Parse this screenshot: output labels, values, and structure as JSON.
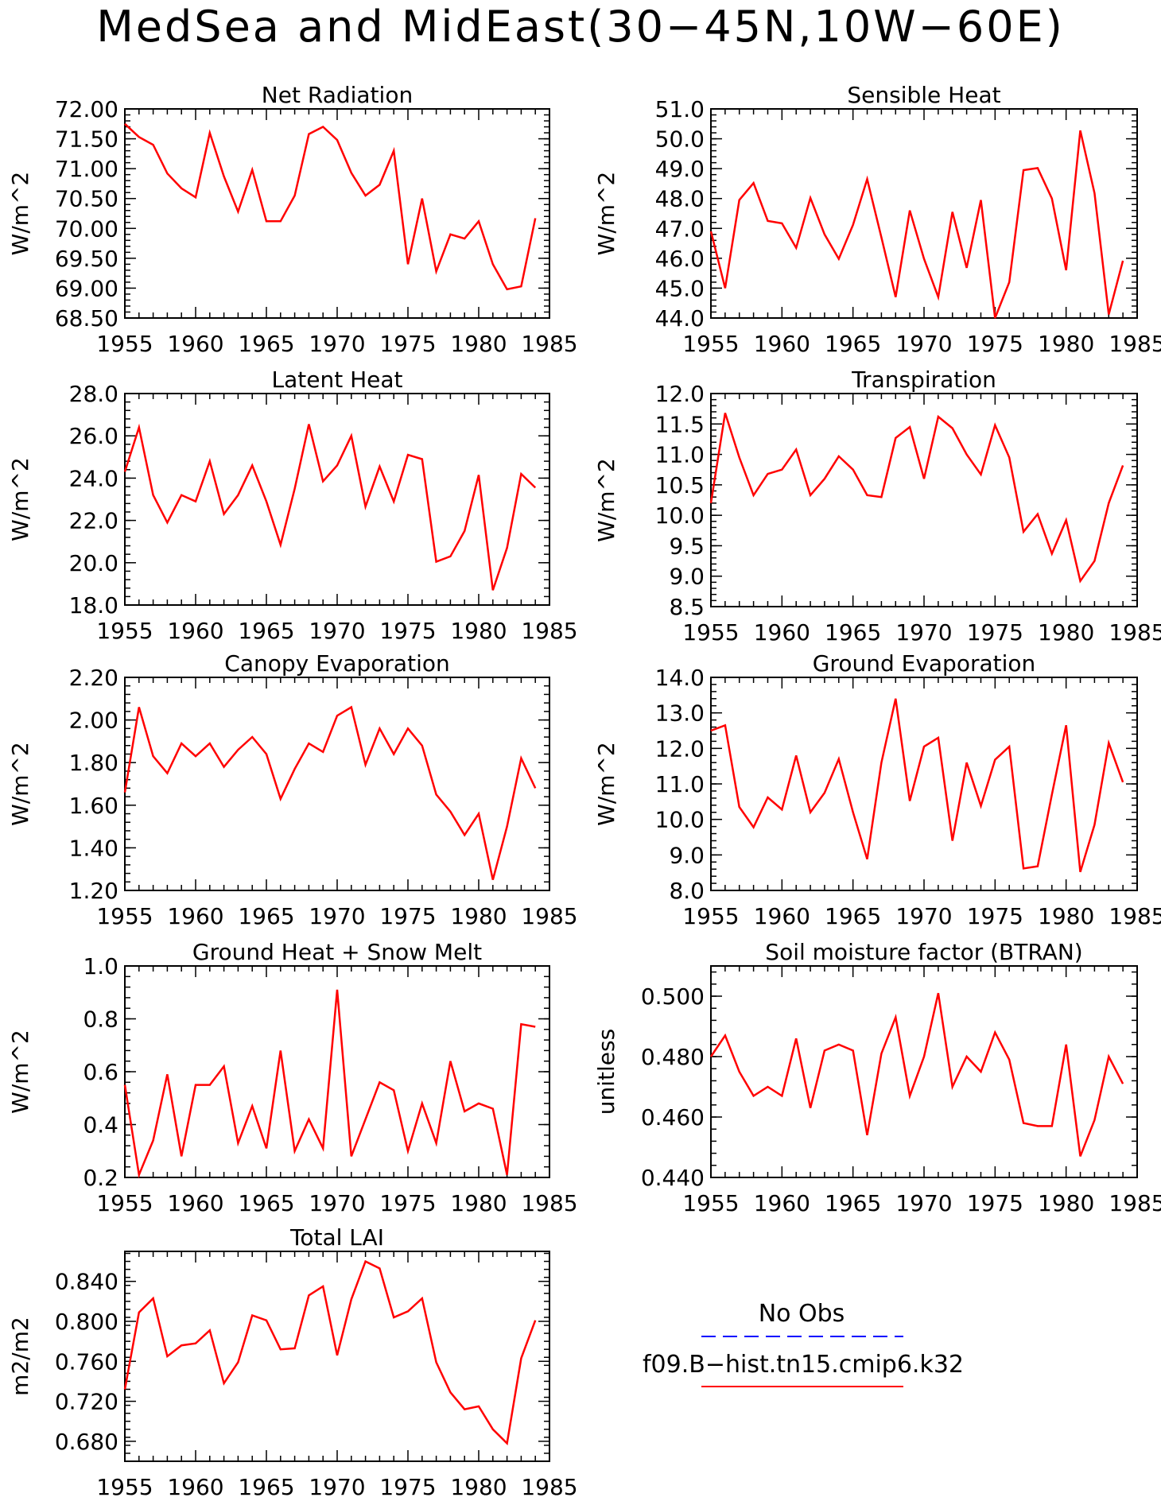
{
  "title": "MedSea and MidEast(30−45N,10W−60E)",
  "colors": {
    "model_line": "#ff0000",
    "obs_line": "#0000ff",
    "axes": "#000000",
    "background": "#ffffff"
  },
  "legend": {
    "obs_label": "No Obs",
    "model_label": "f09.B−hist.tn15.cmip6.k32"
  },
  "chart_data": [
    {
      "type": "line",
      "title": "Net Radiation",
      "ylabel": "W/m^2",
      "xlabel": "",
      "xlim": [
        1955,
        1985
      ],
      "xticks": [
        1955,
        1960,
        1965,
        1970,
        1975,
        1980,
        1985
      ],
      "ylim": [
        68.5,
        72.0
      ],
      "yticks": [
        "68.50",
        "69.00",
        "69.50",
        "70.00",
        "70.50",
        "71.00",
        "71.50",
        "72.00"
      ],
      "x": [
        1955,
        1956,
        1957,
        1958,
        1959,
        1960,
        1961,
        1962,
        1963,
        1964,
        1965,
        1966,
        1967,
        1968,
        1969,
        1970,
        1971,
        1972,
        1973,
        1974,
        1975,
        1976,
        1977,
        1978,
        1979,
        1980,
        1981,
        1982,
        1983,
        1984
      ],
      "series": [
        {
          "values": [
            71.75,
            71.53,
            71.4,
            70.92,
            70.67,
            70.52,
            71.6,
            70.87,
            70.28,
            70.98,
            70.12,
            70.12,
            70.55,
            71.58,
            71.7,
            71.48,
            70.93,
            70.55,
            70.73,
            71.3,
            69.4,
            70.5,
            69.28,
            69.9,
            69.83,
            70.12,
            69.4,
            68.98,
            69.03,
            70.17
          ]
        }
      ]
    },
    {
      "type": "line",
      "title": "Sensible Heat",
      "ylabel": "W/m^2",
      "xlabel": "",
      "xlim": [
        1955,
        1985
      ],
      "xticks": [
        1955,
        1960,
        1965,
        1970,
        1975,
        1980,
        1985
      ],
      "ylim": [
        44.0,
        51.0
      ],
      "yticks": [
        "44.0",
        "45.0",
        "46.0",
        "47.0",
        "48.0",
        "49.0",
        "50.0",
        "51.0"
      ],
      "x": [
        1955,
        1956,
        1957,
        1958,
        1959,
        1960,
        1961,
        1962,
        1963,
        1964,
        1965,
        1966,
        1967,
        1968,
        1969,
        1970,
        1971,
        1972,
        1973,
        1974,
        1975,
        1976,
        1977,
        1978,
        1979,
        1980,
        1981,
        1982,
        1983,
        1984
      ],
      "series": [
        {
          "values": [
            46.9,
            45.0,
            47.95,
            48.52,
            47.25,
            47.17,
            46.35,
            48.02,
            46.8,
            45.98,
            47.12,
            48.65,
            46.7,
            44.7,
            47.6,
            45.98,
            44.7,
            47.55,
            45.68,
            47.95,
            44.0,
            45.2,
            48.95,
            49.02,
            48.0,
            45.6,
            50.28,
            48.18,
            44.12,
            45.92
          ]
        }
      ]
    },
    {
      "type": "line",
      "title": "Latent Heat",
      "ylabel": "W/m^2",
      "xlabel": "",
      "xlim": [
        1955,
        1985
      ],
      "xticks": [
        1955,
        1960,
        1965,
        1970,
        1975,
        1980,
        1985
      ],
      "ylim": [
        18.0,
        28.0
      ],
      "yticks": [
        "18.0",
        "20.0",
        "22.0",
        "24.0",
        "26.0",
        "28.0"
      ],
      "x": [
        1955,
        1956,
        1957,
        1958,
        1959,
        1960,
        1961,
        1962,
        1963,
        1964,
        1965,
        1966,
        1967,
        1968,
        1969,
        1970,
        1971,
        1972,
        1973,
        1974,
        1975,
        1976,
        1977,
        1978,
        1979,
        1980,
        1981,
        1982,
        1983,
        1984
      ],
      "series": [
        {
          "values": [
            24.3,
            26.4,
            23.2,
            21.9,
            23.2,
            22.9,
            24.8,
            22.3,
            23.2,
            24.6,
            22.9,
            20.85,
            23.5,
            26.55,
            23.85,
            24.6,
            26.0,
            22.65,
            24.55,
            22.9,
            25.1,
            24.9,
            20.05,
            20.3,
            21.5,
            24.15,
            18.7,
            20.7,
            24.2,
            23.55
          ]
        }
      ]
    },
    {
      "type": "line",
      "title": "Transpiration",
      "ylabel": "W/m^2",
      "xlabel": "",
      "xlim": [
        1955,
        1985
      ],
      "xticks": [
        1955,
        1960,
        1965,
        1970,
        1975,
        1980,
        1985
      ],
      "ylim": [
        8.5,
        12.0
      ],
      "yticks": [
        "8.5",
        "9.0",
        "9.5",
        "10.0",
        "10.5",
        "11.0",
        "11.5",
        "12.0"
      ],
      "x": [
        1955,
        1956,
        1957,
        1958,
        1959,
        1960,
        1961,
        1962,
        1963,
        1964,
        1965,
        1966,
        1967,
        1968,
        1969,
        1970,
        1971,
        1972,
        1973,
        1974,
        1975,
        1976,
        1977,
        1978,
        1979,
        1980,
        1981,
        1982,
        1983,
        1984
      ],
      "series": [
        {
          "values": [
            10.2,
            11.68,
            10.95,
            10.33,
            10.68,
            10.75,
            11.08,
            10.33,
            10.6,
            10.97,
            10.75,
            10.33,
            10.3,
            11.27,
            11.45,
            10.6,
            11.62,
            11.43,
            11.0,
            10.67,
            11.48,
            10.95,
            9.73,
            10.02,
            9.37,
            9.92,
            8.92,
            9.25,
            10.2,
            10.82
          ]
        }
      ]
    },
    {
      "type": "line",
      "title": "Canopy Evaporation",
      "ylabel": "W/m^2",
      "xlabel": "",
      "xlim": [
        1955,
        1985
      ],
      "xticks": [
        1955,
        1960,
        1965,
        1970,
        1975,
        1980,
        1985
      ],
      "ylim": [
        1.2,
        2.2
      ],
      "yticks": [
        "1.20",
        "1.40",
        "1.60",
        "1.80",
        "2.00",
        "2.20"
      ],
      "x": [
        1955,
        1956,
        1957,
        1958,
        1959,
        1960,
        1961,
        1962,
        1963,
        1964,
        1965,
        1966,
        1967,
        1968,
        1969,
        1970,
        1971,
        1972,
        1973,
        1974,
        1975,
        1976,
        1977,
        1978,
        1979,
        1980,
        1981,
        1982,
        1983,
        1984
      ],
      "series": [
        {
          "values": [
            1.66,
            2.06,
            1.83,
            1.75,
            1.89,
            1.83,
            1.89,
            1.78,
            1.86,
            1.92,
            1.84,
            1.63,
            1.77,
            1.89,
            1.85,
            2.02,
            2.06,
            1.79,
            1.96,
            1.84,
            1.96,
            1.88,
            1.65,
            1.57,
            1.46,
            1.56,
            1.25,
            1.5,
            1.82,
            1.68
          ]
        }
      ]
    },
    {
      "type": "line",
      "title": "Ground Evaporation",
      "ylabel": "W/m^2",
      "xlabel": "",
      "xlim": [
        1955,
        1985
      ],
      "xticks": [
        1955,
        1960,
        1965,
        1970,
        1975,
        1980,
        1985
      ],
      "ylim": [
        8.0,
        14.0
      ],
      "yticks": [
        "8.0",
        "9.0",
        "10.0",
        "11.0",
        "12.0",
        "13.0",
        "14.0"
      ],
      "x": [
        1955,
        1956,
        1957,
        1958,
        1959,
        1960,
        1961,
        1962,
        1963,
        1964,
        1965,
        1966,
        1967,
        1968,
        1969,
        1970,
        1971,
        1972,
        1973,
        1974,
        1975,
        1976,
        1977,
        1978,
        1979,
        1980,
        1981,
        1982,
        1983,
        1984
      ],
      "series": [
        {
          "values": [
            12.5,
            12.65,
            10.35,
            9.78,
            10.62,
            10.28,
            11.8,
            10.2,
            10.75,
            11.7,
            10.2,
            8.88,
            11.6,
            13.4,
            10.52,
            12.05,
            12.3,
            9.4,
            11.6,
            10.38,
            11.68,
            12.05,
            8.62,
            8.68,
            10.7,
            12.65,
            8.52,
            9.85,
            12.15,
            11.05
          ]
        }
      ]
    },
    {
      "type": "line",
      "title": "Ground Heat + Snow Melt",
      "ylabel": "W/m^2",
      "xlabel": "",
      "xlim": [
        1955,
        1985
      ],
      "xticks": [
        1955,
        1960,
        1965,
        1970,
        1975,
        1980,
        1985
      ],
      "ylim": [
        0.2,
        1.0
      ],
      "yticks": [
        "0.2",
        "0.4",
        "0.6",
        "0.8",
        "1.0"
      ],
      "x": [
        1955,
        1956,
        1957,
        1958,
        1959,
        1960,
        1961,
        1962,
        1963,
        1964,
        1965,
        1966,
        1967,
        1968,
        1969,
        1970,
        1971,
        1972,
        1973,
        1974,
        1975,
        1976,
        1977,
        1978,
        1979,
        1980,
        1981,
        1982,
        1983,
        1984
      ],
      "series": [
        {
          "values": [
            0.55,
            0.21,
            0.34,
            0.59,
            0.28,
            0.55,
            0.55,
            0.62,
            0.33,
            0.47,
            0.31,
            0.68,
            0.3,
            0.42,
            0.31,
            0.91,
            0.28,
            0.42,
            0.56,
            0.53,
            0.3,
            0.48,
            0.33,
            0.64,
            0.45,
            0.48,
            0.46,
            0.21,
            0.78,
            0.77
          ]
        }
      ]
    },
    {
      "type": "line",
      "title": "Soil moisture factor (BTRAN)",
      "ylabel": "unitless",
      "xlabel": "",
      "xlim": [
        1955,
        1985
      ],
      "xticks": [
        1955,
        1960,
        1965,
        1970,
        1975,
        1980,
        1985
      ],
      "ylim": [
        0.44,
        0.51
      ],
      "yticks": [
        "0.440",
        "0.460",
        "0.480",
        "0.500"
      ],
      "x": [
        1955,
        1956,
        1957,
        1958,
        1959,
        1960,
        1961,
        1962,
        1963,
        1964,
        1965,
        1966,
        1967,
        1968,
        1969,
        1970,
        1971,
        1972,
        1973,
        1974,
        1975,
        1976,
        1977,
        1978,
        1979,
        1980,
        1981,
        1982,
        1983,
        1984
      ],
      "series": [
        {
          "values": [
            0.48,
            0.487,
            0.475,
            0.467,
            0.47,
            0.467,
            0.486,
            0.463,
            0.482,
            0.484,
            0.482,
            0.454,
            0.481,
            0.493,
            0.467,
            0.48,
            0.501,
            0.47,
            0.48,
            0.475,
            0.488,
            0.479,
            0.458,
            0.457,
            0.457,
            0.484,
            0.447,
            0.459,
            0.48,
            0.471
          ]
        }
      ]
    },
    {
      "type": "line",
      "title": "Total LAI",
      "ylabel": "m2/m2",
      "xlabel": "",
      "xlim": [
        1955,
        1985
      ],
      "xticks": [
        1955,
        1960,
        1965,
        1970,
        1975,
        1980,
        1985
      ],
      "ylim": [
        0.66,
        0.87
      ],
      "yticks": [
        "0.680",
        "0.720",
        "0.760",
        "0.800",
        "0.840"
      ],
      "x": [
        1955,
        1956,
        1957,
        1958,
        1959,
        1960,
        1961,
        1962,
        1963,
        1964,
        1965,
        1966,
        1967,
        1968,
        1969,
        1970,
        1971,
        1972,
        1973,
        1974,
        1975,
        1976,
        1977,
        1978,
        1979,
        1980,
        1981,
        1982,
        1983,
        1984
      ],
      "series": [
        {
          "values": [
            0.732,
            0.809,
            0.823,
            0.765,
            0.776,
            0.778,
            0.791,
            0.738,
            0.759,
            0.806,
            0.801,
            0.772,
            0.773,
            0.826,
            0.835,
            0.766,
            0.822,
            0.86,
            0.853,
            0.804,
            0.81,
            0.823,
            0.759,
            0.729,
            0.712,
            0.715,
            0.692,
            0.678,
            0.763,
            0.801
          ]
        }
      ]
    }
  ]
}
